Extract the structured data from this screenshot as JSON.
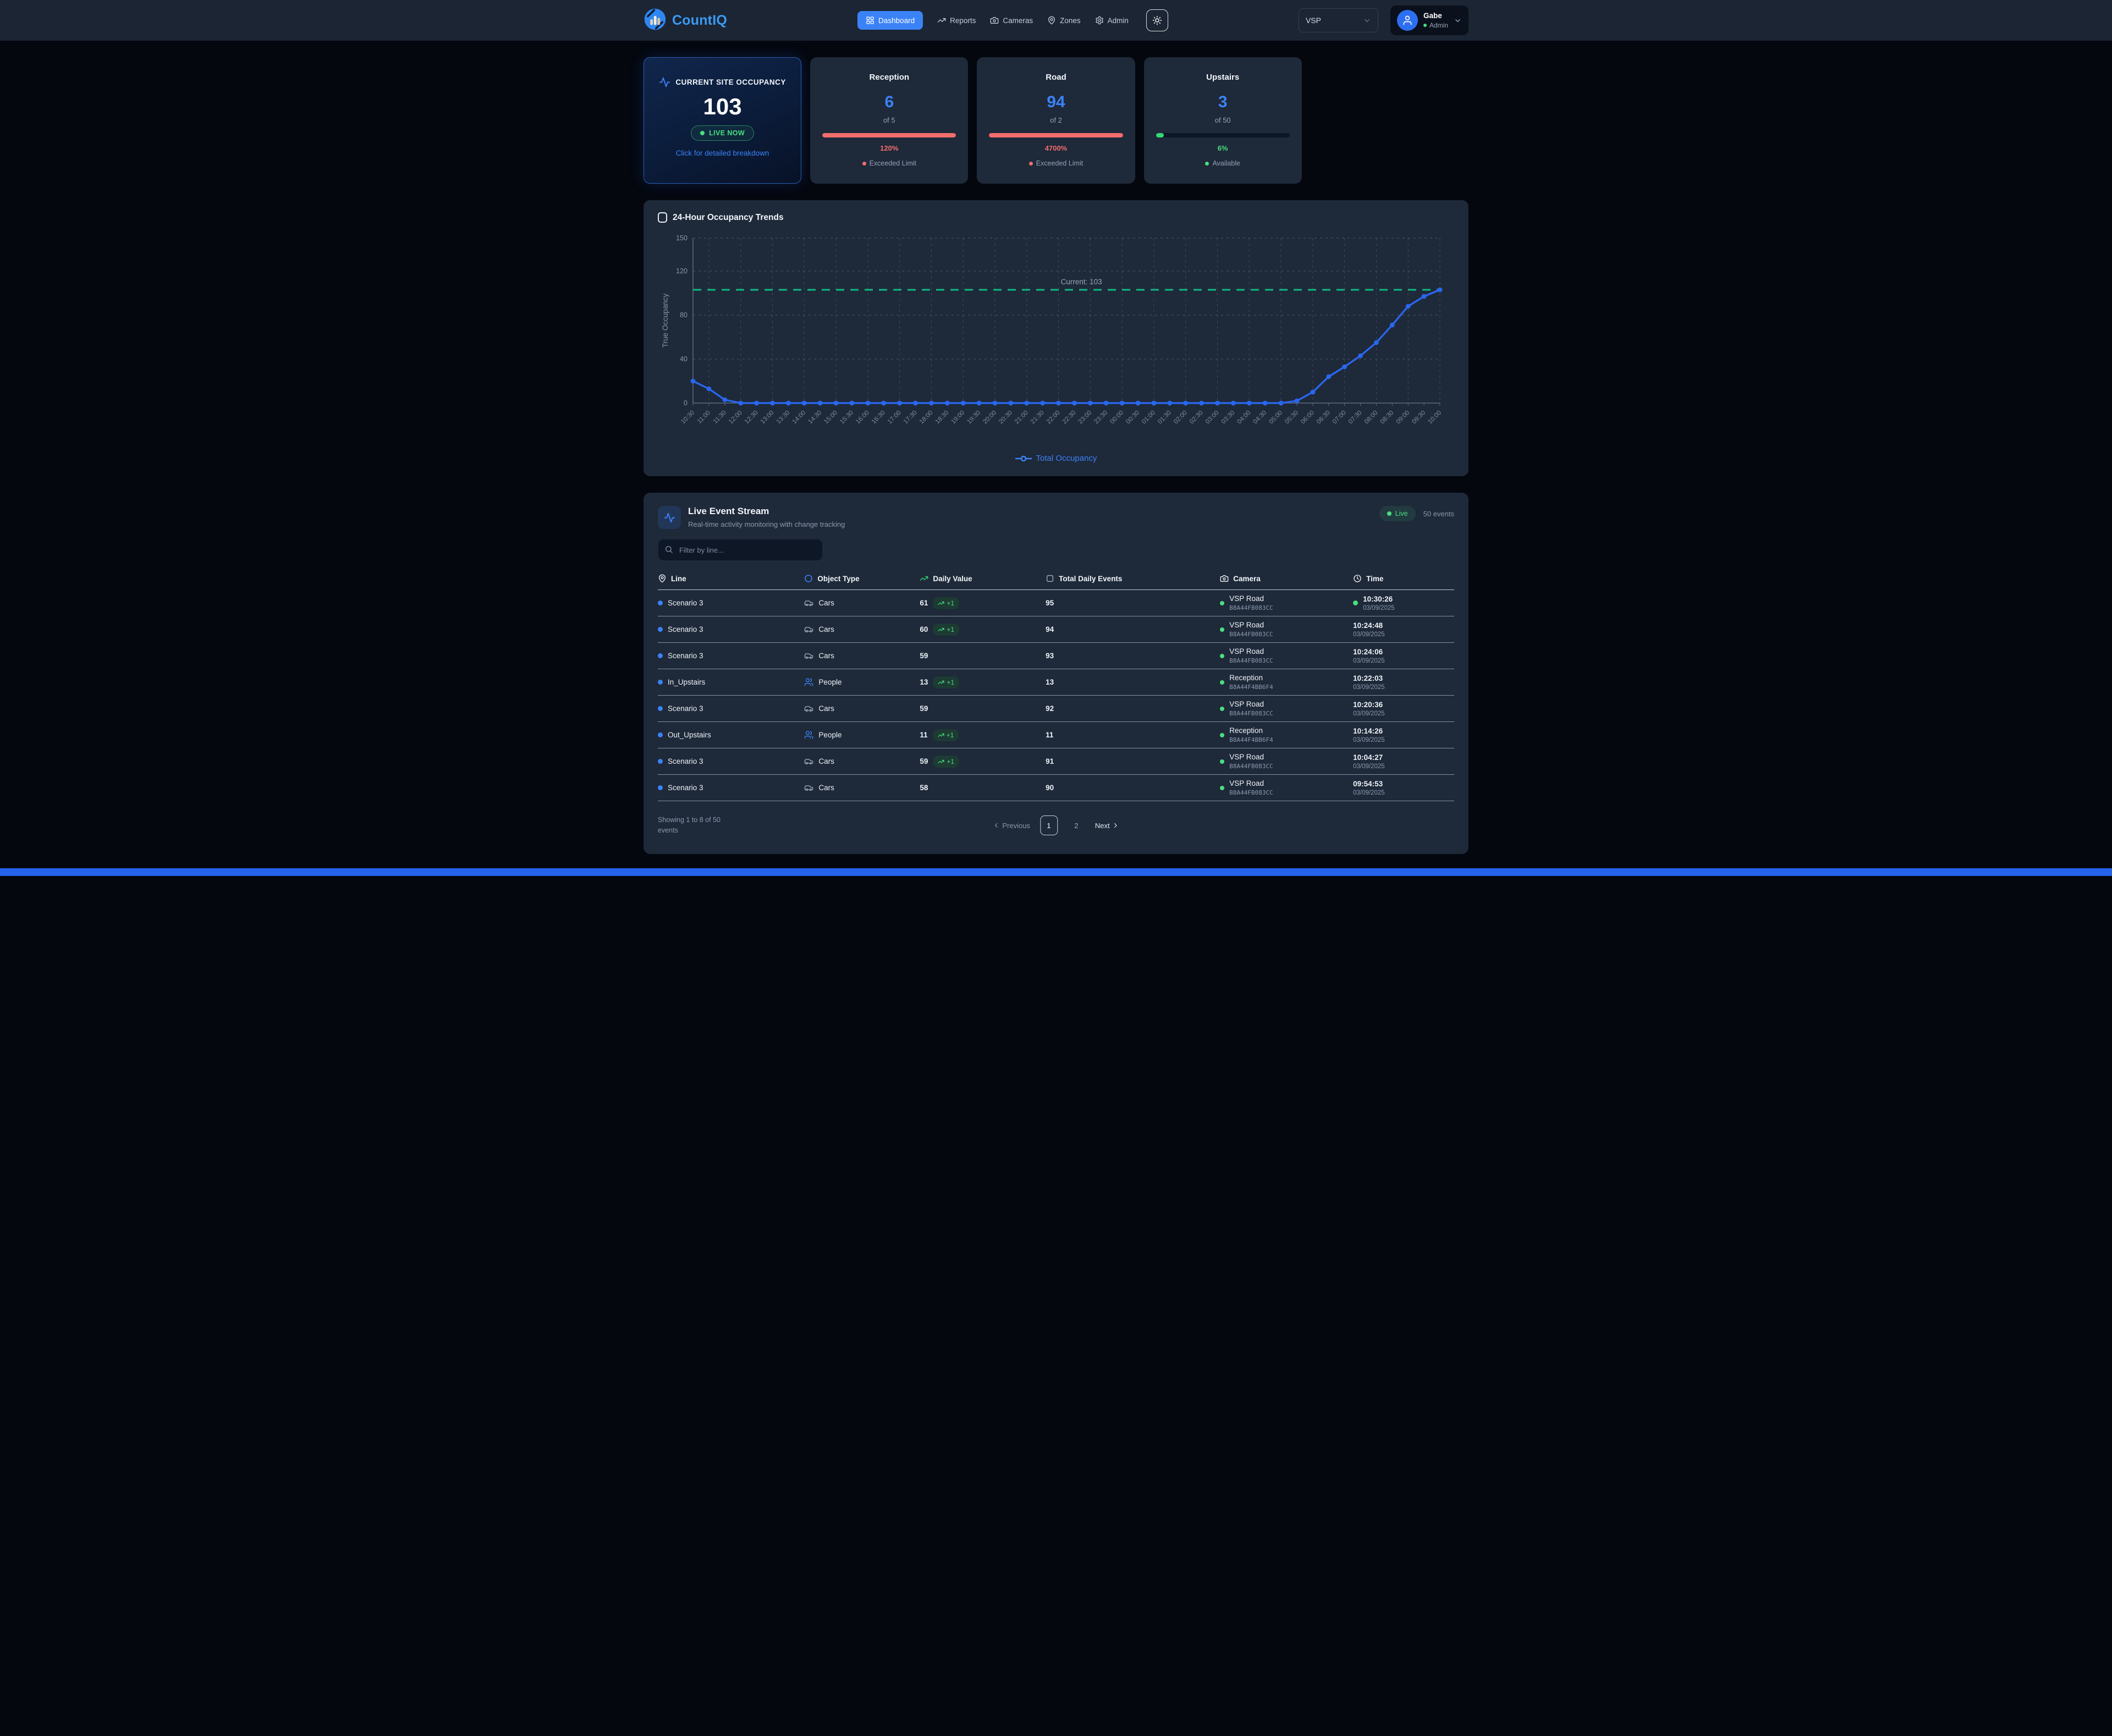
{
  "header": {
    "brand": "CountIQ",
    "nav": [
      {
        "label": "Dashboard",
        "active": true
      },
      {
        "label": "Reports",
        "active": false
      },
      {
        "label": "Cameras",
        "active": false
      },
      {
        "label": "Zones",
        "active": false
      },
      {
        "label": "Admin",
        "active": false
      }
    ],
    "site_selector": "VSP",
    "user": {
      "name": "Gabe",
      "role": "Admin"
    }
  },
  "stats": {
    "occupancy": {
      "title": "CURRENT SITE OCCUPANCY",
      "value": "103",
      "badge": "LIVE NOW",
      "hint": "Click for detailed breakdown"
    },
    "zones": [
      {
        "name": "Reception",
        "value": "6",
        "capacity": "of 5",
        "percent": "120%",
        "status": "Exceeded Limit",
        "state": "exceeded",
        "bar_percent": 100
      },
      {
        "name": "Road",
        "value": "94",
        "capacity": "of 2",
        "percent": "4700%",
        "status": "Exceeded Limit",
        "state": "exceeded",
        "bar_percent": 100
      },
      {
        "name": "Upstairs",
        "value": "3",
        "capacity": "of 50",
        "percent": "6%",
        "status": "Available",
        "state": "available",
        "bar_percent": 6
      }
    ]
  },
  "chart_data": {
    "type": "line",
    "title": "24-Hour Occupancy Trends",
    "ylabel": "True Occupancy",
    "ylim": [
      0,
      150
    ],
    "yticks": [
      0,
      40,
      80,
      120,
      150
    ],
    "grid": "dashed",
    "legend_position": "bottom",
    "x": [
      "10:30",
      "11:00",
      "11:30",
      "12:00",
      "12:30",
      "13:00",
      "13:30",
      "14:00",
      "14:30",
      "15:00",
      "15:30",
      "16:00",
      "16:30",
      "17:00",
      "17:30",
      "18:00",
      "18:30",
      "19:00",
      "19:30",
      "20:00",
      "20:30",
      "21:00",
      "21:30",
      "22:00",
      "22:30",
      "23:00",
      "23:30",
      "00:00",
      "00:30",
      "01:00",
      "01:30",
      "02:00",
      "02:30",
      "03:00",
      "03:30",
      "04:00",
      "04:30",
      "05:00",
      "05:30",
      "06:00",
      "06:30",
      "07:00",
      "07:30",
      "08:00",
      "08:30",
      "09:00",
      "09:30",
      "10:00"
    ],
    "series": [
      {
        "name": "Total Occupancy",
        "color": "#2a66ee",
        "values": [
          20,
          13,
          3,
          0,
          0,
          0,
          0,
          0,
          0,
          0,
          0,
          0,
          0,
          0,
          0,
          0,
          0,
          0,
          0,
          0,
          0,
          0,
          0,
          0,
          0,
          0,
          0,
          0,
          0,
          0,
          0,
          0,
          0,
          0,
          0,
          0,
          0,
          0,
          2,
          10,
          24,
          33,
          43,
          55,
          71,
          88,
          97,
          103
        ]
      }
    ],
    "annotation": {
      "label": "Current: 103",
      "value": 103,
      "color": "#10b981"
    }
  },
  "events": {
    "title": "Live Event Stream",
    "subtitle": "Real-time activity monitoring with change tracking",
    "live_label": "Live",
    "count_label": "50 events",
    "filter_placeholder": "Filter by line...",
    "columns": [
      {
        "label": "Line",
        "icon": "map-pin-icon"
      },
      {
        "label": "Object Type",
        "icon": "circle-icon"
      },
      {
        "label": "Daily Value",
        "icon": "trending-up-icon"
      },
      {
        "label": "Total Daily Events",
        "icon": "square-icon"
      },
      {
        "label": "Camera",
        "icon": "camera-icon"
      },
      {
        "label": "Time",
        "icon": "clock-icon"
      }
    ],
    "rows": [
      {
        "line": "Scenario 3",
        "object": "Cars",
        "object_icon": "car-icon",
        "value": "61",
        "delta": "+1",
        "total": "95",
        "camera": "VSP Road",
        "camera_id": "B8A44FB083CC",
        "time": "10:30:26",
        "date": "03/09/2025",
        "recent": true
      },
      {
        "line": "Scenario 3",
        "object": "Cars",
        "object_icon": "car-icon",
        "value": "60",
        "delta": "+1",
        "total": "94",
        "camera": "VSP Road",
        "camera_id": "B8A44FB083CC",
        "time": "10:24:48",
        "date": "03/09/2025",
        "recent": false
      },
      {
        "line": "Scenario 3",
        "object": "Cars",
        "object_icon": "car-icon",
        "value": "59",
        "delta": null,
        "total": "93",
        "camera": "VSP Road",
        "camera_id": "B8A44FB083CC",
        "time": "10:24:06",
        "date": "03/09/2025",
        "recent": false
      },
      {
        "line": "In_Upstairs",
        "object": "People",
        "object_icon": "people-icon",
        "value": "13",
        "delta": "+1",
        "total": "13",
        "camera": "Reception",
        "camera_id": "B8A44F4BB6F4",
        "time": "10:22:03",
        "date": "03/09/2025",
        "recent": false
      },
      {
        "line": "Scenario 3",
        "object": "Cars",
        "object_icon": "car-icon",
        "value": "59",
        "delta": null,
        "total": "92",
        "camera": "VSP Road",
        "camera_id": "B8A44FB083CC",
        "time": "10:20:36",
        "date": "03/09/2025",
        "recent": false
      },
      {
        "line": "Out_Upstairs",
        "object": "People",
        "object_icon": "people-icon",
        "value": "11",
        "delta": "+1",
        "total": "11",
        "camera": "Reception",
        "camera_id": "B8A44F4BB6F4",
        "time": "10:14:26",
        "date": "03/09/2025",
        "recent": false
      },
      {
        "line": "Scenario 3",
        "object": "Cars",
        "object_icon": "car-icon",
        "value": "59",
        "delta": "+1",
        "total": "91",
        "camera": "VSP Road",
        "camera_id": "B8A44FB083CC",
        "time": "10:04:27",
        "date": "03/09/2025",
        "recent": false
      },
      {
        "line": "Scenario 3",
        "object": "Cars",
        "object_icon": "car-icon",
        "value": "58",
        "delta": null,
        "total": "90",
        "camera": "VSP Road",
        "camera_id": "B8A44FB083CC",
        "time": "09:54:53",
        "date": "03/09/2025",
        "recent": false
      }
    ],
    "footer": {
      "showing": "Showing 1 to 8 of 50 events",
      "previous_label": "Previous",
      "pages": [
        "1",
        "2"
      ],
      "active_page": "1",
      "next_label": "Next"
    }
  },
  "colors": {
    "accent": "#3b82f6",
    "line": "#2a66ee",
    "green": "#4ade80",
    "emerald": "#10b981",
    "red": "#f26d6d",
    "muted": "#94a3b8",
    "footer_bar": "#2563eb"
  },
  "icons": {
    "search-icon": "🔍",
    "sun-icon": "☀",
    "chevron-down-icon": "▾",
    "map-pin-icon": "📍",
    "camera-icon": "📷",
    "clock-icon": "🕐",
    "trending-up-icon": "↗",
    "user-icon": "👤",
    "activity-icon": "∿",
    "car-icon": "🚗",
    "people-icon": "👥",
    "grid-icon": "▦",
    "gear-icon": "⚙"
  }
}
